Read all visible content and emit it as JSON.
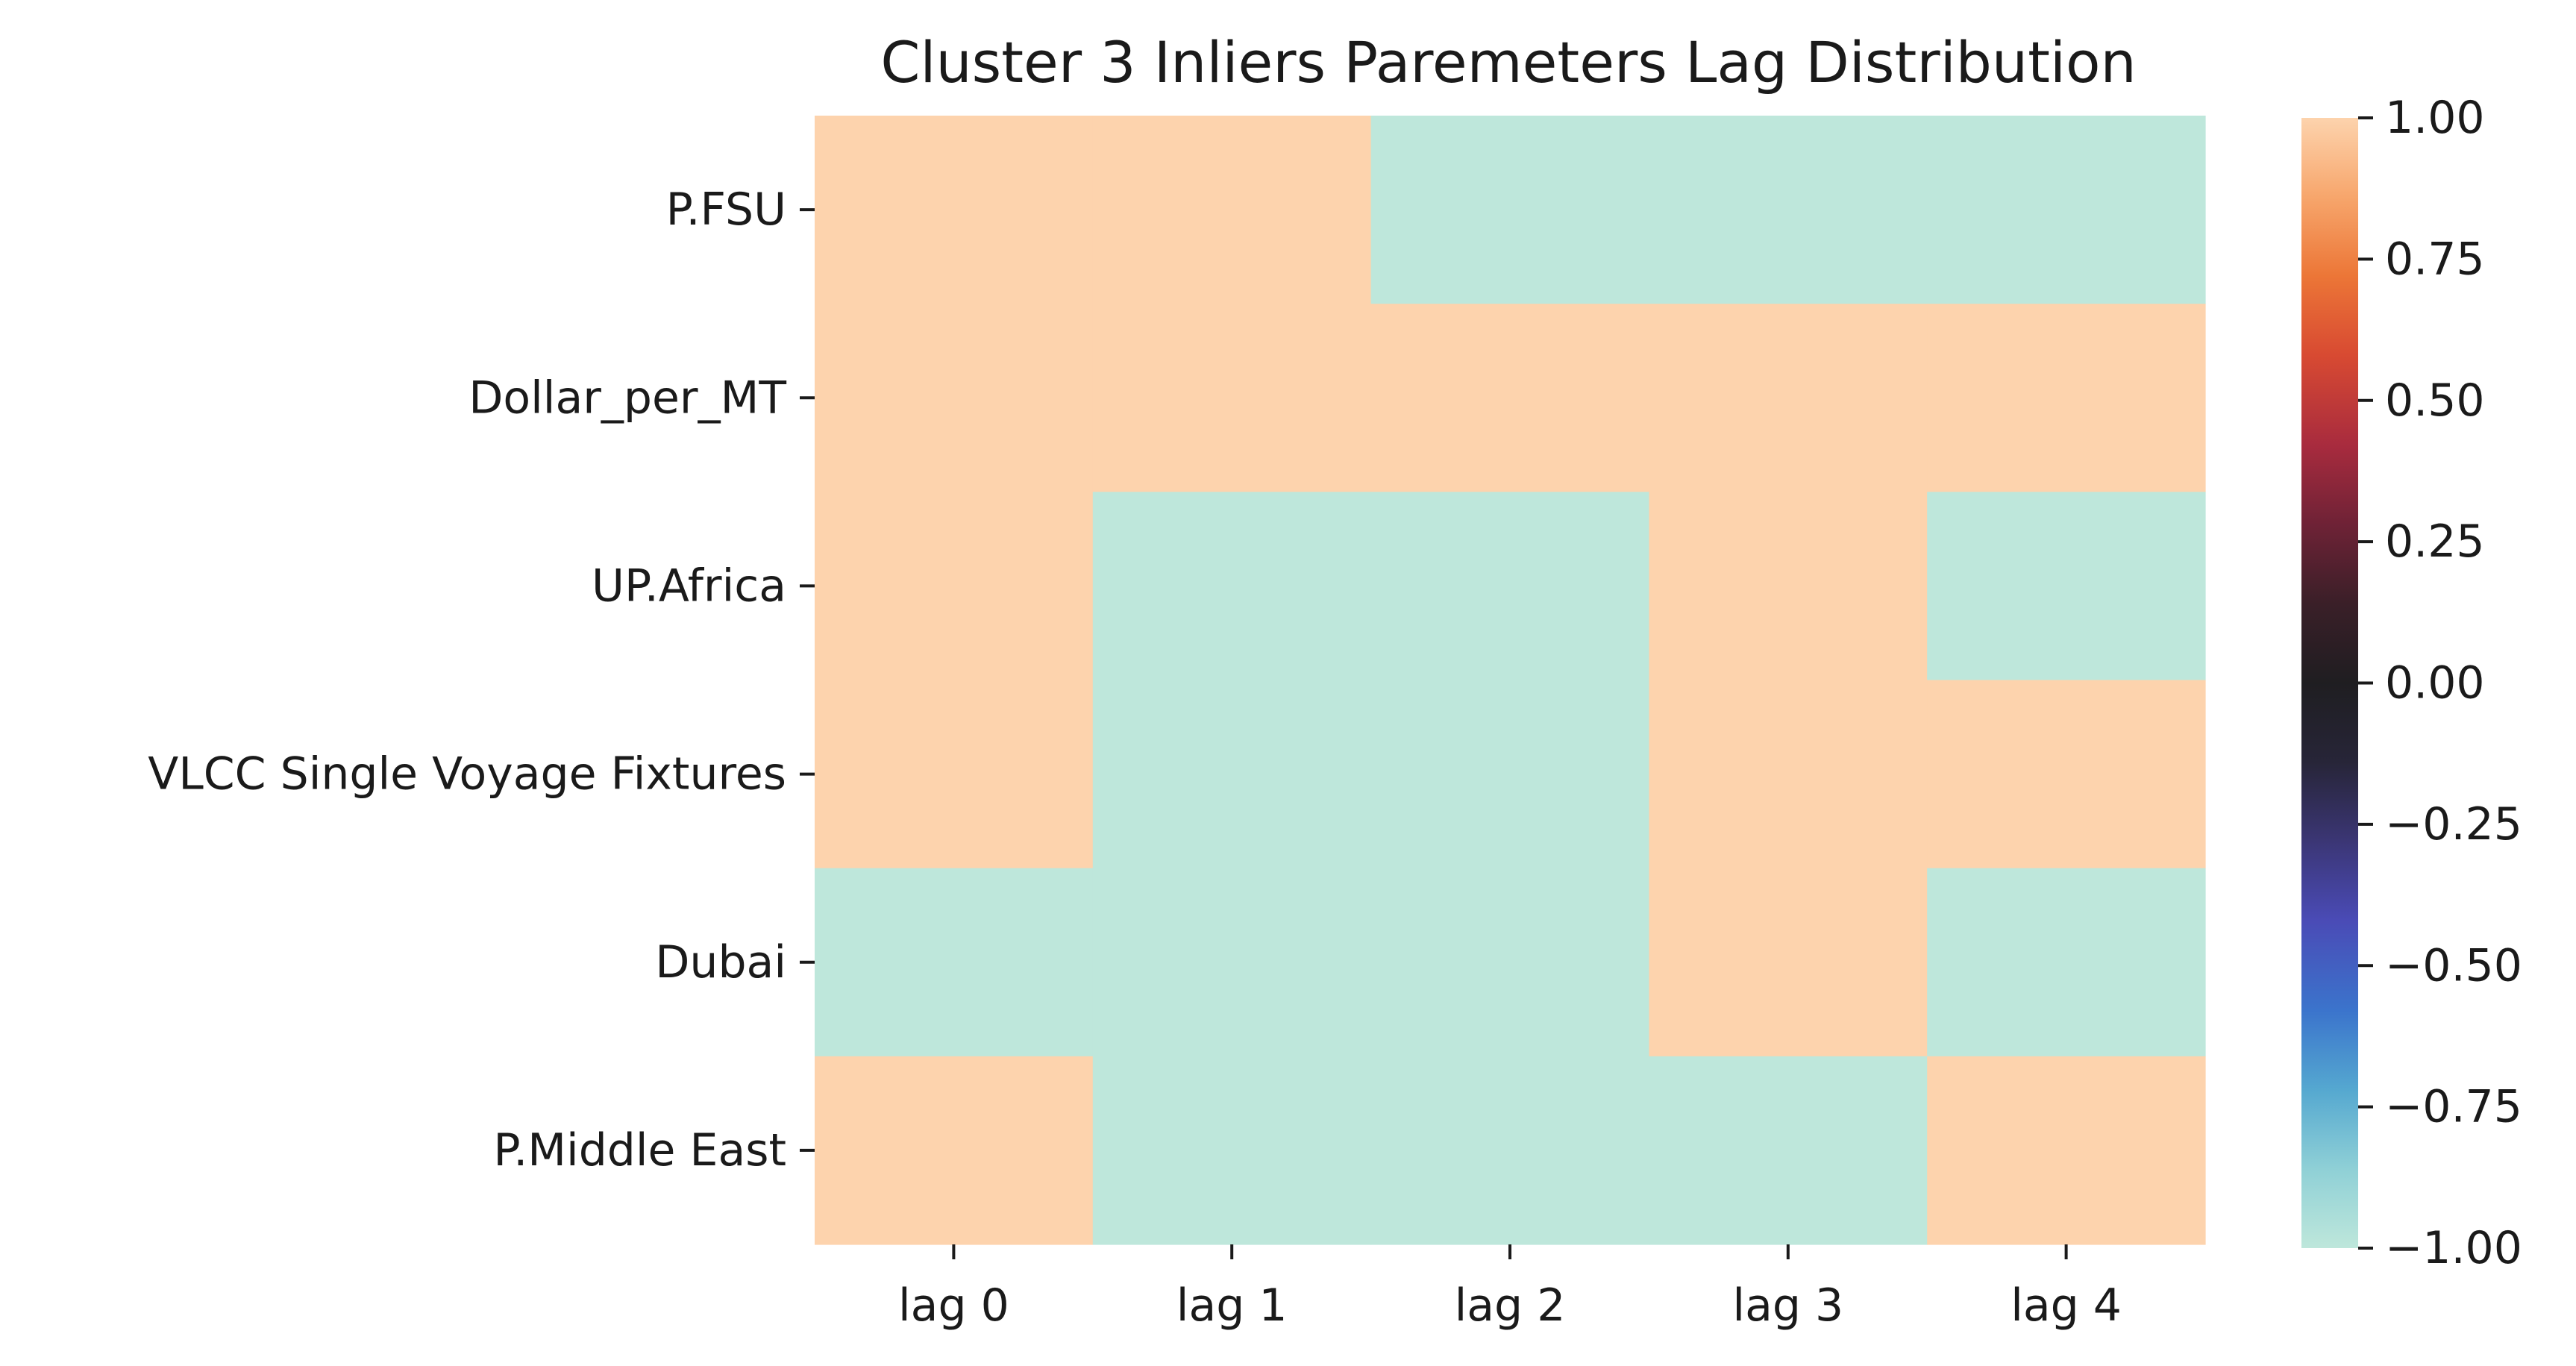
{
  "chart_data": {
    "type": "heatmap",
    "title": "Cluster 3 Inliers Paremeters Lag Distribution",
    "xlabel": "",
    "ylabel": "",
    "x_categories": [
      "lag 0",
      "lag 1",
      "lag 2",
      "lag 3",
      "lag 4"
    ],
    "y_categories": [
      "P.FSU",
      "Dollar_per_MT",
      "UP.Africa",
      "VLCC Single Voyage Fixtures",
      "Dubai",
      "P.Middle East"
    ],
    "values": [
      [
        1,
        1,
        -1,
        -1,
        -1
      ],
      [
        1,
        1,
        1,
        1,
        1
      ],
      [
        1,
        -1,
        -1,
        1,
        -1
      ],
      [
        1,
        -1,
        -1,
        1,
        1
      ],
      [
        -1,
        -1,
        -1,
        1,
        -1
      ],
      [
        1,
        -1,
        -1,
        -1,
        1
      ]
    ],
    "colorbar": {
      "range": [
        -1,
        1
      ],
      "ticks": [
        "1.00",
        "0.75",
        "0.50",
        "0.25",
        "0.00",
        "−0.25",
        "−0.50",
        "−0.75",
        "−1.00"
      ],
      "tick_values": [
        1,
        0.75,
        0.5,
        0.25,
        0,
        -0.25,
        -0.5,
        -0.75,
        -1
      ]
    },
    "colormap": "icefire",
    "colors": {
      "high": "#fdd3ad",
      "low": "#bee7db"
    },
    "grid": false,
    "legend": "colorbar-right"
  }
}
